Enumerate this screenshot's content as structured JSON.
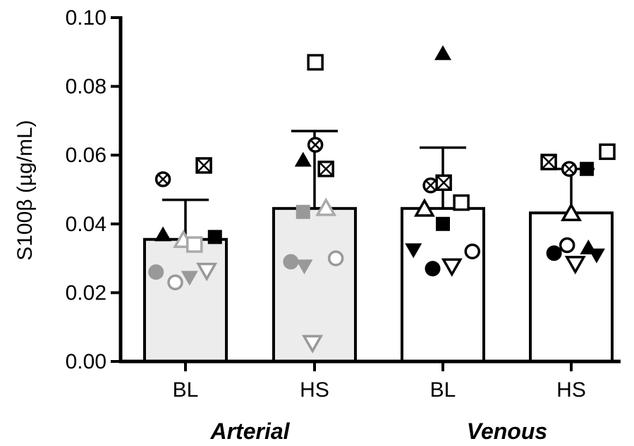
{
  "chart_data": {
    "type": "bar",
    "ylabel": "S100β (µg/mL)",
    "ylim": [
      0,
      0.1
    ],
    "yticks": [
      "0.00",
      "0.02",
      "0.04",
      "0.06",
      "0.08",
      "0.10"
    ],
    "categories": [
      "BL",
      "HS",
      "BL",
      "HS"
    ],
    "groups": [
      {
        "label": "Arterial",
        "categories": [
          0,
          1
        ]
      },
      {
        "label": "Venous",
        "categories": [
          2,
          3
        ]
      }
    ],
    "bar_colors": [
      "#ececec",
      "#ececec",
      "#ffffff",
      "#ffffff"
    ],
    "means": [
      0.0355,
      0.0445,
      0.0445,
      0.0432
    ],
    "sd_upper": [
      0.047,
      0.067,
      0.0622,
      0.056
    ],
    "points": [
      [
        {
          "marker": "circle-cross",
          "color": "#000000",
          "dx": -0.55,
          "y": 0.053
        },
        {
          "marker": "square-x",
          "color": "#000000",
          "dx": 0.45,
          "y": 0.057
        },
        {
          "marker": "triangle",
          "color": "#000000",
          "dx": -0.55,
          "y": 0.0368
        },
        {
          "marker": "square",
          "color": "#000000",
          "dx": 0.72,
          "y": 0.0362
        },
        {
          "marker": "triangle-open",
          "color": "#aaaaaa",
          "dx": -0.05,
          "y": 0.0352
        },
        {
          "marker": "square-open",
          "color": "#aaaaaa",
          "dx": 0.22,
          "y": 0.034
        },
        {
          "marker": "circle",
          "color": "#999999",
          "dx": -0.72,
          "y": 0.026
        },
        {
          "marker": "circle-open",
          "color": "#999999",
          "dx": -0.25,
          "y": 0.023
        },
        {
          "marker": "triangle-down",
          "color": "#999999",
          "dx": 0.1,
          "y": 0.0245
        },
        {
          "marker": "triangle-down-open",
          "color": "#999999",
          "dx": 0.52,
          "y": 0.0265
        }
      ],
      [
        {
          "marker": "square-open",
          "color": "#000000",
          "dx": 0.02,
          "y": 0.087
        },
        {
          "marker": "circle-cross",
          "color": "#000000",
          "dx": 0.02,
          "y": 0.063
        },
        {
          "marker": "triangle",
          "color": "#000000",
          "dx": -0.28,
          "y": 0.0585
        },
        {
          "marker": "square-x",
          "color": "#000000",
          "dx": 0.28,
          "y": 0.056
        },
        {
          "marker": "square",
          "color": "#999999",
          "dx": -0.28,
          "y": 0.0435
        },
        {
          "marker": "triangle-open",
          "color": "#aaaaaa",
          "dx": 0.28,
          "y": 0.0445
        },
        {
          "marker": "circle",
          "color": "#999999",
          "dx": -0.58,
          "y": 0.029
        },
        {
          "marker": "triangle-down",
          "color": "#999999",
          "dx": -0.25,
          "y": 0.0278
        },
        {
          "marker": "circle-open",
          "color": "#999999",
          "dx": 0.52,
          "y": 0.03
        },
        {
          "marker": "triangle-down-open",
          "color": "#999999",
          "dx": -0.05,
          "y": 0.0055
        }
      ],
      [
        {
          "marker": "triangle",
          "color": "#000000",
          "dx": 0.0,
          "y": 0.0895
        },
        {
          "marker": "circle-cross",
          "color": "#000000",
          "dx": -0.3,
          "y": 0.0512
        },
        {
          "marker": "square-x",
          "color": "#000000",
          "dx": 0.02,
          "y": 0.052
        },
        {
          "marker": "triangle-open",
          "color": "#000000",
          "dx": -0.45,
          "y": 0.0443
        },
        {
          "marker": "square-open",
          "color": "#000000",
          "dx": 0.45,
          "y": 0.0462
        },
        {
          "marker": "square",
          "color": "#000000",
          "dx": 0.0,
          "y": 0.04
        },
        {
          "marker": "triangle-down",
          "color": "#000000",
          "dx": -0.72,
          "y": 0.0325
        },
        {
          "marker": "circle",
          "color": "#000000",
          "dx": -0.25,
          "y": 0.027
        },
        {
          "marker": "triangle-down-open",
          "color": "#000000",
          "dx": 0.22,
          "y": 0.0278
        },
        {
          "marker": "circle-open",
          "color": "#000000",
          "dx": 0.72,
          "y": 0.032
        }
      ],
      [
        {
          "marker": "square-x",
          "color": "#000000",
          "dx": -0.55,
          "y": 0.058
        },
        {
          "marker": "circle-cross",
          "color": "#000000",
          "dx": -0.05,
          "y": 0.056
        },
        {
          "marker": "square",
          "color": "#000000",
          "dx": 0.38,
          "y": 0.056
        },
        {
          "marker": "square-open",
          "color": "#000000",
          "dx": 0.88,
          "y": 0.061
        },
        {
          "marker": "triangle-open",
          "color": "#000000",
          "dx": 0.0,
          "y": 0.043
        },
        {
          "marker": "circle-open",
          "color": "#000000",
          "dx": -0.1,
          "y": 0.0338
        },
        {
          "marker": "circle",
          "color": "#000000",
          "dx": -0.42,
          "y": 0.0315
        },
        {
          "marker": "triangle",
          "color": "#000000",
          "dx": 0.42,
          "y": 0.033
        },
        {
          "marker": "triangle-down",
          "color": "#000000",
          "dx": 0.62,
          "y": 0.031
        },
        {
          "marker": "triangle-down-open",
          "color": "#000000",
          "dx": 0.1,
          "y": 0.0285
        }
      ]
    ]
  }
}
